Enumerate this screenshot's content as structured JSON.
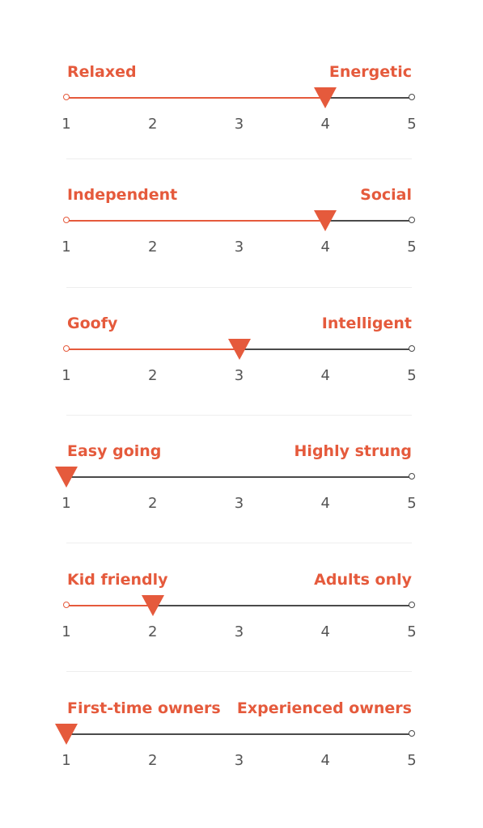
{
  "colors": {
    "accent": "#e55a3c",
    "track": "#4a4a4a",
    "tick_text": "#555555",
    "divider": "#eeeeee"
  },
  "icons": {
    "marker": "triangle-down-marker-icon",
    "endpoint": "circle-endpoint-icon"
  },
  "scale_min": 1,
  "scale_max": 5,
  "ticks": [
    "1",
    "2",
    "3",
    "4",
    "5"
  ],
  "scales": [
    {
      "left_label": "Relaxed",
      "right_label": "Energetic",
      "value": 4
    },
    {
      "left_label": "Independent",
      "right_label": "Social",
      "value": 4
    },
    {
      "left_label": "Goofy",
      "right_label": "Intelligent",
      "value": 3
    },
    {
      "left_label": "Easy going",
      "right_label": "Highly strung",
      "value": 1
    },
    {
      "left_label": "Kid friendly",
      "right_label": "Adults only",
      "value": 2
    },
    {
      "left_label": "First-time owners",
      "right_label": "Experienced owners",
      "value": 1
    }
  ]
}
